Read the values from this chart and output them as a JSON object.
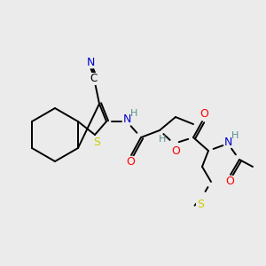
{
  "background_color": "#ebebeb",
  "atom_colors": {
    "C": "#000000",
    "N": "#0000cc",
    "O": "#ff0000",
    "S": "#cccc00",
    "H": "#5a9090"
  },
  "bond_color": "#000000",
  "bond_width": 1.4,
  "figsize": [
    3.0,
    3.0
  ],
  "dpi": 100
}
